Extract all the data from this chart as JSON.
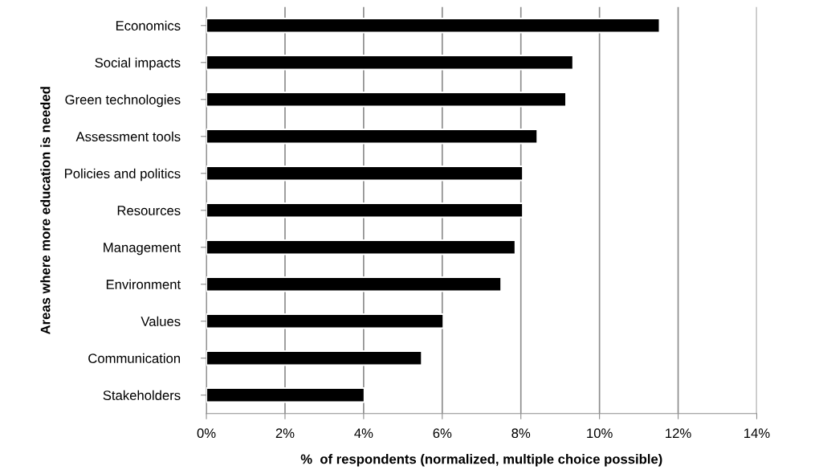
{
  "chart_data": {
    "type": "bar",
    "orientation": "horizontal",
    "categories": [
      "Economics",
      "Social impacts",
      "Green technologies",
      "Assessment tools",
      "Policies and politics",
      "Resources",
      "Management",
      "Environment",
      "Values",
      "Communication",
      "Stakeholders"
    ],
    "values": [
      11.53,
      9.33,
      9.15,
      8.42,
      8.05,
      8.05,
      7.86,
      7.5,
      6.03,
      5.48,
      4.02
    ],
    "color": "#000000",
    "xlabel": "%  of respondents (normalized, multiple choice possible)",
    "ylabel": "Areas where more education is needed",
    "xlim": [
      0,
      14
    ],
    "xticks": [
      {
        "value": 0,
        "label": "0%"
      },
      {
        "value": 2,
        "label": "2%"
      },
      {
        "value": 4,
        "label": "4%"
      },
      {
        "value": 6,
        "label": "6%"
      },
      {
        "value": 8,
        "label": "8%"
      },
      {
        "value": 10,
        "label": "10%"
      },
      {
        "value": 12,
        "label": "12%"
      },
      {
        "value": 14,
        "label": "14%"
      }
    ],
    "grid": "x"
  }
}
